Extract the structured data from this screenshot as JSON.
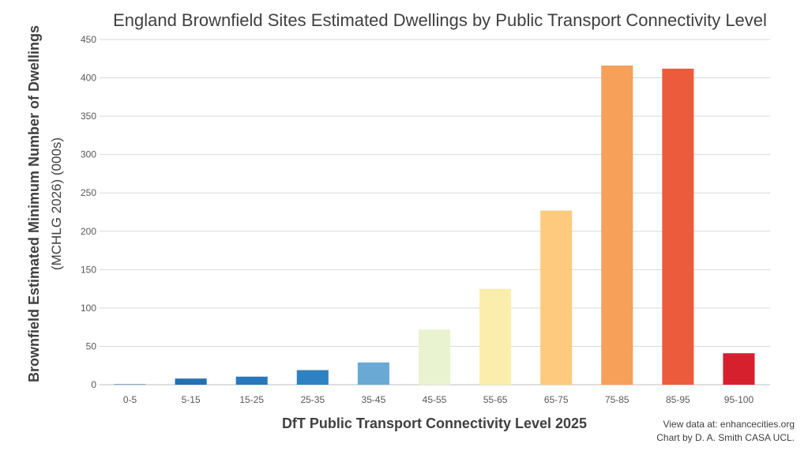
{
  "chart_data": {
    "type": "bar",
    "title": "England Brownfield Sites Estimated Dwellings by Public Transport Connectivity Level",
    "xlabel": "DfT Public Transport Connectivity Level 2025",
    "ylabel": "Brownfield Estimated Minimum Number of Dwellings",
    "ylabel_sub": "(MCHLG 2026) (000s)",
    "ylim": [
      0,
      450
    ],
    "yticks": [
      "0",
      "50",
      "100",
      "150",
      "200",
      "250",
      "300",
      "350",
      "400",
      "450"
    ],
    "grid": true,
    "categories": [
      "0-5",
      "5-15",
      "15-25",
      "25-35",
      "35-45",
      "45-55",
      "55-65",
      "65-75",
      "75-85",
      "85-95",
      "95-100"
    ],
    "values": [
      0.5,
      8,
      10.5,
      19,
      29,
      72,
      125,
      227,
      416,
      412,
      41
    ],
    "colors": [
      "#0b4a8a",
      "#2171b5",
      "#2878bb",
      "#2f82c0",
      "#69a9d4",
      "#eaf3cf",
      "#fbeeac",
      "#fdca7e",
      "#f6a05a",
      "#ec5b3c",
      "#d7202e"
    ]
  },
  "credits": {
    "line1": "View data at: enhancecities.org",
    "line2": "Chart by D. A. Smith CASA UCL."
  }
}
